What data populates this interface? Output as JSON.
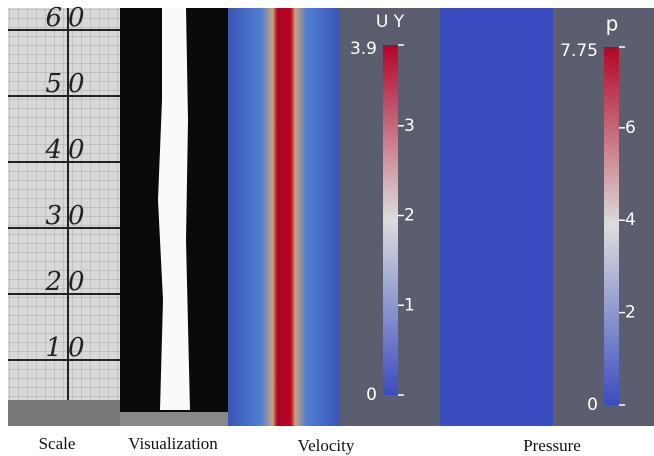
{
  "scale": {
    "labels": [
      "60",
      "50",
      "40",
      "30",
      "20",
      "10"
    ],
    "caption": "Scale"
  },
  "visualization": {
    "caption": "Visualization"
  },
  "velocity": {
    "caption": "Velocity",
    "title": "U Y",
    "lim": [
      0,
      3.9
    ],
    "ticks": [
      0,
      1,
      2,
      3,
      3.9
    ]
  },
  "pressure": {
    "caption": "Pressure",
    "title": "p",
    "lim": [
      0,
      7.75
    ],
    "ticks": [
      0,
      2,
      4,
      6,
      7.75
    ]
  }
}
